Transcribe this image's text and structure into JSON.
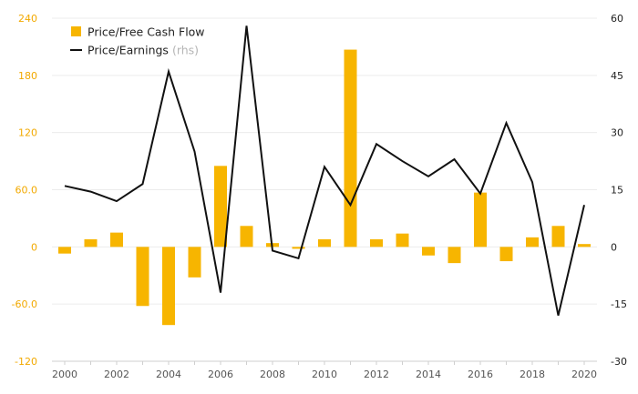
{
  "chart_data": {
    "type": "bar+line",
    "title": "",
    "xlabel": "",
    "x": [
      2000,
      2001,
      2002,
      2003,
      2004,
      2005,
      2006,
      2007,
      2008,
      2009,
      2010,
      2011,
      2012,
      2013,
      2014,
      2015,
      2016,
      2017,
      2018,
      2019,
      2020
    ],
    "x_tick_labels": [
      "2000",
      "2002",
      "2004",
      "2006",
      "2008",
      "2010",
      "2012",
      "2014",
      "2016",
      "2018",
      "2020"
    ],
    "left_axis": {
      "ylim": [
        -120,
        240
      ],
      "ticks": [
        "-120",
        "-60.0",
        "0",
        "60.0",
        "120",
        "180",
        "240"
      ]
    },
    "right_axis": {
      "ylim": [
        -30,
        60
      ],
      "ticks": [
        "-30",
        "-15",
        "0",
        "15",
        "30",
        "45",
        "60"
      ]
    },
    "grid": true,
    "legend_position": "top-left",
    "series": [
      {
        "name": "Price/Free Cash Flow",
        "type": "bar",
        "axis": "left",
        "color": "#f7b500",
        "values": [
          -7,
          8,
          15,
          -62,
          -82,
          -32,
          85,
          22,
          4,
          -2,
          8,
          207,
          8,
          14,
          -9,
          -17,
          57,
          -15,
          10,
          22,
          3
        ]
      },
      {
        "name": "Price/Earnings",
        "name_suffix": "(rhs)",
        "type": "line",
        "axis": "right",
        "color": "#111111",
        "values": [
          16,
          14.5,
          12,
          16.5,
          46,
          25,
          -12,
          58,
          -1,
          -3,
          21,
          11,
          27,
          22.5,
          18.5,
          23,
          14,
          32.5,
          17,
          -18,
          11
        ]
      }
    ]
  }
}
